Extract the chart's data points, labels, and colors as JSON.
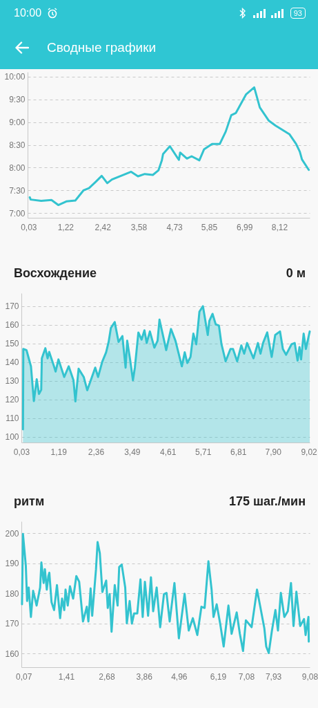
{
  "chart_data": [
    {
      "type": "line",
      "title": "Сводные графики",
      "annotations": [
        "10:00",
        "93"
      ],
      "x": [
        0.07,
        0.1,
        0.44,
        0.77,
        0.99,
        1.25,
        1.54,
        1.8,
        1.98,
        2.2,
        2.39,
        2.57,
        2.72,
        3.01,
        3.34,
        3.56,
        3.78,
        4.04,
        4.22,
        4.33,
        4.37,
        4.59,
        4.88,
        4.92,
        5.14,
        5.29,
        5.54,
        5.69,
        5.95,
        6.2,
        6.39,
        6.57,
        6.72,
        7.05,
        7.31,
        7.49,
        7.78,
        8.0,
        8.45,
        8.66,
        8.78,
        8.85,
        9.07
      ],
      "series": [
        {
          "color": "#33c3cf",
          "values": [
            7.35,
            7.3,
            7.27,
            7.29,
            7.18,
            7.26,
            7.28,
            7.5,
            7.55,
            7.69,
            7.82,
            7.66,
            7.74,
            7.82,
            7.91,
            7.81,
            7.86,
            7.84,
            7.94,
            8.16,
            8.3,
            8.47,
            8.17,
            8.33,
            8.2,
            8.25,
            8.16,
            8.4,
            8.52,
            8.52,
            8.79,
            9.15,
            9.2,
            9.61,
            9.76,
            9.32,
            9.03,
            8.92,
            8.73,
            8.52,
            8.35,
            8.18,
            7.95
          ]
        }
      ],
      "xlim": [
        0,
        9.1
      ],
      "ylim": [
        6.9,
        10.1
      ],
      "xticks": [
        {
          "value": 0.03,
          "label": "0,03"
        },
        {
          "value": 1.22,
          "label": "1,22"
        },
        {
          "value": 2.42,
          "label": "2,42"
        },
        {
          "value": 3.58,
          "label": "3,58"
        },
        {
          "value": 4.73,
          "label": "4,73"
        },
        {
          "value": 5.85,
          "label": "5,85"
        },
        {
          "value": 6.99,
          "label": "6,99"
        },
        {
          "value": 8.12,
          "label": "8,12"
        }
      ],
      "yticks": [
        {
          "value": 7,
          "label": "7:00"
        },
        {
          "value": 7.5,
          "label": "7:30"
        },
        {
          "value": 8,
          "label": "8:00"
        },
        {
          "value": 8.5,
          "label": "8:30"
        },
        {
          "value": 9,
          "label": "9:00"
        },
        {
          "value": 9.5,
          "label": "9:30"
        },
        {
          "value": 10,
          "label": "10:00"
        }
      ],
      "grid": "y",
      "line_style": "solid"
    },
    {
      "type": "area",
      "title": "Восхождение",
      "annotations": [
        "0 м"
      ],
      "x": [
        0.08,
        0.09,
        0.19,
        0.26,
        0.33,
        0.42,
        0.51,
        0.58,
        0.65,
        0.67,
        0.78,
        0.85,
        0.9,
        1.05,
        1.1,
        1.19,
        1.37,
        1.51,
        1.66,
        1.72,
        1.82,
        1.98,
        2.09,
        2.34,
        2.43,
        2.56,
        2.68,
        2.76,
        2.83,
        2.95,
        3.07,
        3.19,
        3.29,
        3.34,
        3.43,
        3.52,
        3.58,
        3.69,
        3.79,
        3.88,
        3.95,
        4.05,
        4.19,
        4.29,
        4.35,
        4.48,
        4.56,
        4.71,
        4.85,
        5.05,
        5.14,
        5.22,
        5.32,
        5.41,
        5.5,
        5.6,
        5.71,
        5.86,
        5.91,
        6.01,
        6.11,
        6.21,
        6.29,
        6.42,
        6.57,
        6.65,
        6.78,
        6.91,
        7.0,
        7.09,
        7.29,
        7.43,
        7.51,
        7.59,
        7.72,
        7.86,
        7.97,
        8.12,
        8.21,
        8.31,
        8.48,
        8.58,
        8.67,
        8.73,
        8.78,
        8.86,
        8.93,
        9.05
      ],
      "series": [
        {
          "color": "#33c3cf",
          "values": [
            104,
            147.1,
            146.5,
            142.1,
            137.8,
            119.2,
            130.9,
            123,
            125.2,
            142.1,
            147.5,
            142.1,
            145.5,
            137.8,
            135,
            141.5,
            132.1,
            137.8,
            130.3,
            119,
            136.5,
            132.1,
            125,
            137.1,
            132.1,
            140.3,
            145.3,
            150.9,
            158.4,
            161.5,
            150.9,
            154,
            137.1,
            151.5,
            141.5,
            130.3,
            137.1,
            155.9,
            152.1,
            157.1,
            150.3,
            156.5,
            147.8,
            151.5,
            162.8,
            152.8,
            146.5,
            157.8,
            151.5,
            137.8,
            145.3,
            139.6,
            142.8,
            155.3,
            149.6,
            167.1,
            170,
            154.6,
            162.1,
            165.9,
            160.3,
            159.6,
            149.6,
            140.5,
            147.1,
            147.1,
            140.5,
            149,
            144.6,
            150.3,
            142.1,
            150.3,
            144.6,
            150.3,
            156,
            142.8,
            154.6,
            156.5,
            147.1,
            144,
            149.6,
            150.3,
            140.9,
            148.1,
            141.5,
            155.3,
            147.1,
            156.5
          ]
        }
      ],
      "xlim": [
        0.03,
        9.05
      ],
      "ylim": [
        97,
        177
      ],
      "xticks": [
        {
          "value": 0.03,
          "label": "0,03"
        },
        {
          "value": 1.19,
          "label": "1,19"
        },
        {
          "value": 2.36,
          "label": "2,36"
        },
        {
          "value": 3.49,
          "label": "3,49"
        },
        {
          "value": 4.61,
          "label": "4,61"
        },
        {
          "value": 5.71,
          "label": "5,71"
        },
        {
          "value": 6.81,
          "label": "6,81"
        },
        {
          "value": 7.9,
          "label": "7,90"
        },
        {
          "value": 9.02,
          "label": "9,02"
        }
      ],
      "yticks": [
        100,
        110,
        120,
        130,
        140,
        150,
        160,
        170
      ],
      "grid": "y",
      "line_style": "solid"
    },
    {
      "type": "line",
      "title": "ритм",
      "annotations": [
        "175 шаг./мин"
      ],
      "x": [
        0.02,
        0.05,
        0.14,
        0.18,
        0.23,
        0.3,
        0.37,
        0.48,
        0.59,
        0.63,
        0.7,
        0.74,
        0.8,
        0.85,
        0.88,
        0.95,
        1.03,
        1.12,
        1.22,
        1.28,
        1.35,
        1.39,
        1.46,
        1.53,
        1.63,
        1.73,
        1.82,
        1.94,
        2.06,
        2.11,
        2.18,
        2.23,
        2.35,
        2.4,
        2.47,
        2.55,
        2.67,
        2.72,
        2.78,
        2.84,
        2.94,
        3.03,
        3.08,
        3.16,
        3.27,
        3.32,
        3.41,
        3.48,
        3.55,
        3.65,
        3.75,
        3.82,
        3.89,
        3.99,
        4.08,
        4.15,
        4.26,
        4.37,
        4.49,
        4.57,
        4.67,
        4.82,
        4.96,
        5.14,
        5.27,
        5.4,
        5.54,
        5.67,
        5.77,
        5.89,
        5.99,
        6.05,
        6.15,
        6.26,
        6.37,
        6.52,
        6.62,
        6.78,
        6.88,
        6.98,
        7.07,
        7.25,
        7.42,
        7.53,
        7.65,
        7.71,
        7.79,
        7.89,
        8.0,
        8.08,
        8.17,
        8.28,
        8.39,
        8.49,
        8.57,
        8.66,
        8.78,
        8.9,
        8.95,
        9.04,
        9.05
      ],
      "series": [
        {
          "color": "#33c3cf",
          "values": [
            176.4,
            199.8,
            189.2,
            177.5,
            182,
            172.2,
            180.9,
            176,
            182,
            190.3,
            183.5,
            188.1,
            181.3,
            185.8,
            186.9,
            177.1,
            174.5,
            182.8,
            171.8,
            178.3,
            174.5,
            181.3,
            176,
            182.4,
            178.3,
            185.8,
            183.9,
            170.7,
            175.6,
            170.7,
            181.7,
            172.6,
            188.1,
            197.1,
            193.4,
            180.5,
            184.3,
            175.2,
            179.8,
            167.3,
            182.8,
            176,
            188.8,
            189.6,
            182,
            170.1,
            177.5,
            170,
            173.4,
            173.4,
            184.7,
            172.2,
            183.9,
            172.6,
            185.4,
            174.1,
            182,
            168.8,
            179.8,
            180.2,
            170.7,
            183.5,
            165.1,
            179.9,
            167.7,
            171.8,
            166.2,
            175.6,
            175.2,
            190.7,
            181.3,
            172.2,
            176.4,
            170,
            162.4,
            176,
            166.6,
            173.7,
            166.6,
            160.9,
            171.1,
            168.8,
            181.3,
            175.2,
            168.5,
            162.4,
            160.2,
            167.7,
            174.5,
            167.7,
            180.2,
            172.2,
            174.1,
            183.5,
            169.2,
            180.6,
            169.2,
            171.5,
            166.2,
            172.2,
            164
          ]
        }
      ],
      "xlim": [
        0,
        9.08
      ],
      "ylim": [
        155.5,
        204
      ],
      "xticks": [
        {
          "value": 0.07,
          "label": "0,07"
        },
        {
          "value": 1.41,
          "label": "1,41"
        },
        {
          "value": 2.68,
          "label": "2,68"
        },
        {
          "value": 3.86,
          "label": "3,86"
        },
        {
          "value": 4.96,
          "label": "4,96"
        },
        {
          "value": 6.19,
          "label": "6,19"
        },
        {
          "value": 7.08,
          "label": "7,08"
        },
        {
          "value": 7.93,
          "label": "7,93"
        },
        {
          "value": 9.08,
          "label": "9,08"
        }
      ],
      "yticks": [
        160,
        170,
        180,
        190,
        200
      ],
      "grid": "y",
      "line_style": "solid"
    }
  ]
}
